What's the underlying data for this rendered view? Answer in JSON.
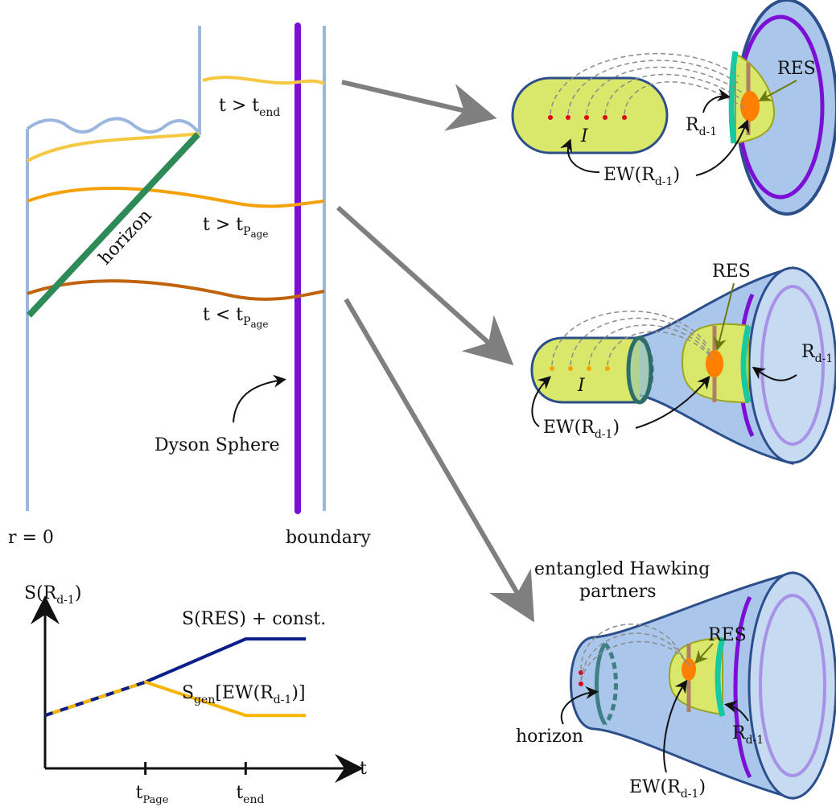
{
  "colors": {
    "pale_blue_line": "#9bb7e0",
    "dyson_purple": "#7b0fd6",
    "horizon_green": "#2e8b57",
    "curve_yellow": "#f5c842",
    "curve_orange": "#f5a20a",
    "curve_brown": "#c0630c",
    "arrow_gray": "#7f7f7f",
    "region_fill": "#d9e86a",
    "blob_orange": "#ff7f00",
    "bulk_blue": "#aac6ea",
    "edge_navy": "#2c4f8c",
    "teal": "#17c9a2",
    "entropy_navy": "#0b1f8a",
    "entropy_yellow": "#f7b500",
    "dots_red": "#e0001b"
  },
  "penrose": {
    "horizon": "horizon",
    "t_end_base": "t > t",
    "t_end_sub": "end",
    "t_page_gt_base": "t > t",
    "t_page_lt_base": "t < t",
    "page_sub_t": "P",
    "page_sub_rest": "age",
    "dyson": "Dyson Sphere",
    "r_zero": "r = 0",
    "boundary": "boundary"
  },
  "panel1": {
    "res": "RES",
    "i": "I",
    "rd_base": "R",
    "rd_sub": "d-1",
    "ew_base": "EW(R",
    "ew_sub": "d-1",
    "ew_close": ")"
  },
  "panel2": {
    "res": "RES",
    "i": "I",
    "rd_base": "R",
    "rd_sub": "d-1",
    "ew_base": "EW(R",
    "ew_sub": "d-1",
    "ew_close": ")"
  },
  "panel3": {
    "title_line1": "entangled Hawking",
    "title_line2": "partners",
    "res": "RES",
    "horizon": "horizon",
    "rd_base": "R",
    "rd_sub": "d-1",
    "ew_base": "EW(R",
    "ew_sub": "d-1",
    "ew_close": ")"
  },
  "chart_data": {
    "type": "line",
    "ylabel_base": "S(R",
    "ylabel_sub": "d-1",
    "ylabel_close": ")",
    "xlabel": "t",
    "x_ticks": [
      {
        "key": "page",
        "base": "t",
        "sub": "Page",
        "x": 1.0
      },
      {
        "key": "end",
        "base": "t",
        "sub": "end",
        "x": 2.0
      }
    ],
    "xlim": [
      0,
      3.0
    ],
    "ylim": [
      0,
      4.0
    ],
    "series": [
      {
        "name": "S(RES) + const.",
        "color": "#0b1f8a",
        "points": [
          [
            0.0,
            1.35
          ],
          [
            1.0,
            2.2
          ],
          [
            2.0,
            3.3
          ],
          [
            2.6,
            3.3
          ]
        ]
      },
      {
        "name_base": "S",
        "name_sub": "gen",
        "name_mid": "[EW(R",
        "name_sub2": "d-1",
        "name_close": ")]",
        "color": "#f7b500",
        "points": [
          [
            0.0,
            1.35
          ],
          [
            1.0,
            2.2
          ],
          [
            2.0,
            1.35
          ],
          [
            2.6,
            1.35
          ]
        ]
      }
    ]
  }
}
